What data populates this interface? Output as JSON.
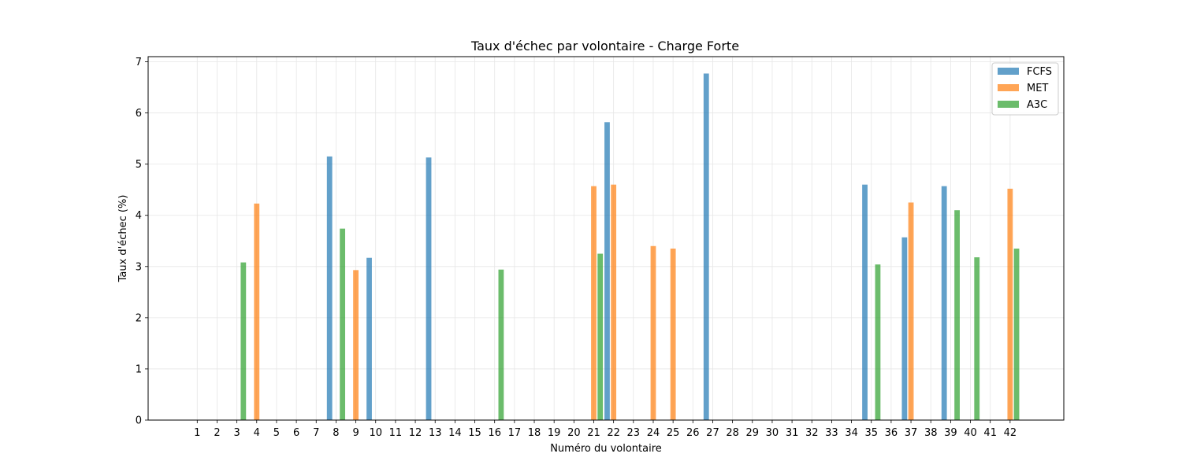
{
  "chart_data": {
    "type": "bar",
    "title": "Taux d'échec par volontaire - Charge Forte",
    "xlabel": "Numéro du volontaire",
    "ylabel": "Taux d'échec (%)",
    "ylim": [
      0,
      7.1
    ],
    "yticks": [
      0,
      1,
      2,
      3,
      4,
      5,
      6,
      7
    ],
    "grid": true,
    "legend_position": "top-right",
    "categories": [
      "1",
      "2",
      "3",
      "4",
      "5",
      "6",
      "7",
      "8",
      "9",
      "10",
      "11",
      "12",
      "13",
      "14",
      "15",
      "16",
      "17",
      "18",
      "19",
      "20",
      "21",
      "22",
      "23",
      "24",
      "25",
      "26",
      "27",
      "28",
      "29",
      "30",
      "31",
      "32",
      "33",
      "34",
      "35",
      "36",
      "37",
      "38",
      "39",
      "40",
      "41",
      "42"
    ],
    "series": [
      {
        "name": "FCFS",
        "color": "#1f77b4",
        "values": [
          0,
          0,
          0,
          0,
          0,
          0,
          0,
          5.15,
          0,
          3.17,
          0,
          0,
          5.13,
          0,
          0,
          0,
          0,
          0,
          0,
          0,
          0,
          5.82,
          0,
          0,
          0,
          0,
          6.77,
          0,
          0,
          0,
          0,
          0,
          0,
          0,
          4.6,
          0,
          3.57,
          0,
          4.57,
          0,
          0,
          0
        ]
      },
      {
        "name": "MET",
        "color": "#ff7f0e",
        "values": [
          0,
          0,
          0,
          4.23,
          0,
          0,
          0,
          0,
          2.93,
          0,
          0,
          0,
          0,
          0,
          0,
          0,
          0,
          0,
          0,
          0,
          4.57,
          4.6,
          0,
          3.4,
          3.35,
          0,
          0,
          0,
          0,
          0,
          0,
          0,
          0,
          0,
          0,
          0,
          4.25,
          0,
          0,
          0,
          0,
          4.52
        ]
      },
      {
        "name": "A3C",
        "color": "#2ca02c",
        "values": [
          0,
          0,
          3.08,
          0,
          0,
          0,
          0,
          3.74,
          0,
          0,
          0,
          0,
          0,
          0,
          0,
          2.94,
          0,
          0,
          0,
          0,
          3.25,
          0,
          0,
          0,
          0,
          0,
          0,
          0,
          0,
          0,
          0,
          0,
          0,
          0,
          3.04,
          0,
          0,
          0,
          4.1,
          3.18,
          0,
          3.35
        ]
      }
    ]
  }
}
